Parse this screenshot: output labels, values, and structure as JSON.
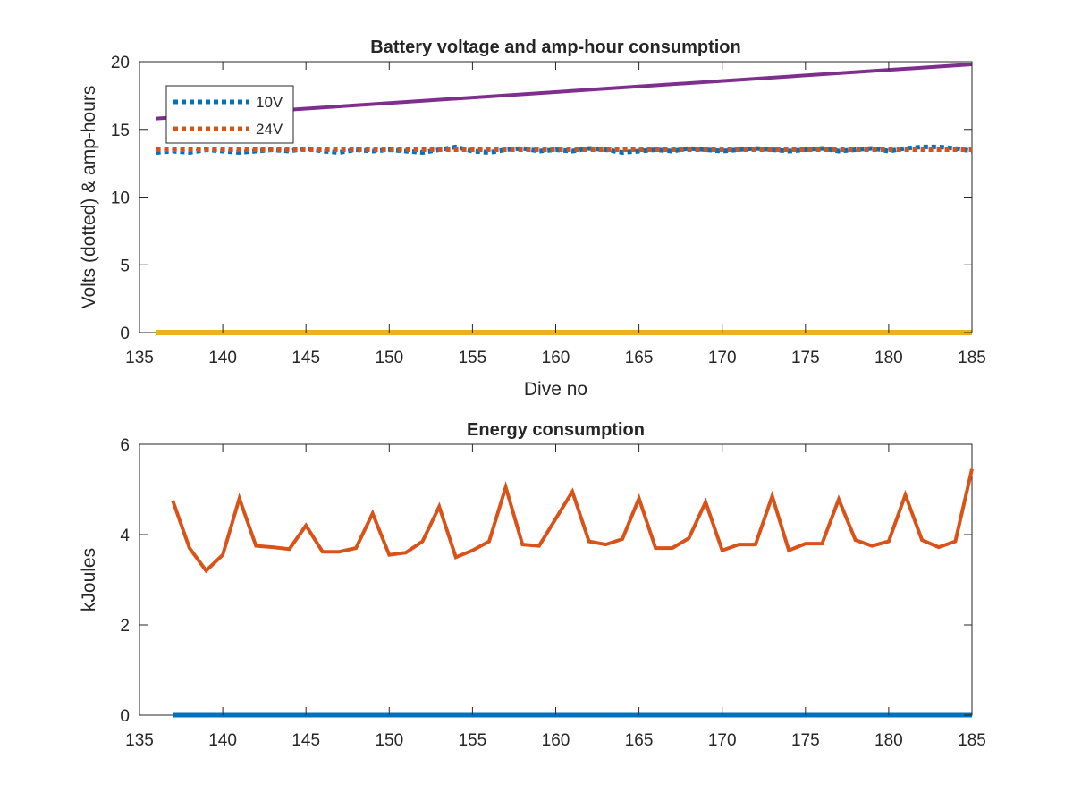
{
  "colors": {
    "v10": "#0072BD",
    "v24": "#D95319",
    "ah_top": "#7E2F8E",
    "ah_zero": "#EDB120",
    "energy_24v": "#D95319",
    "energy_10v": "#0072BD",
    "axis": "#262626"
  },
  "chart_data": [
    {
      "type": "line",
      "title": "Battery voltage and amp-hour consumption",
      "xlabel": "Dive no",
      "ylabel": "Volts (dotted) & amp-hours",
      "xlim": [
        135,
        185
      ],
      "ylim": [
        0,
        20
      ],
      "xticks": [
        135,
        140,
        145,
        150,
        155,
        160,
        165,
        170,
        175,
        180,
        185
      ],
      "yticks": [
        0,
        5,
        10,
        15,
        20
      ],
      "grid": false,
      "legend": {
        "placement": "top-left",
        "entries": [
          "10V",
          "24V"
        ]
      },
      "series": [
        {
          "name": "10V",
          "style": "dotted",
          "x": [
            136,
            137,
            138,
            139,
            140,
            141,
            142,
            143,
            144,
            145,
            146,
            147,
            148,
            149,
            150,
            151,
            152,
            153,
            154,
            155,
            156,
            157,
            158,
            159,
            160,
            161,
            162,
            163,
            164,
            165,
            166,
            167,
            168,
            169,
            170,
            171,
            172,
            173,
            174,
            175,
            176,
            177,
            178,
            179,
            180,
            181,
            182,
            183,
            184,
            185
          ],
          "y": [
            13.3,
            13.4,
            13.3,
            13.5,
            13.4,
            13.3,
            13.4,
            13.5,
            13.4,
            13.6,
            13.4,
            13.3,
            13.5,
            13.4,
            13.5,
            13.4,
            13.3,
            13.5,
            13.7,
            13.4,
            13.3,
            13.5,
            13.6,
            13.4,
            13.5,
            13.4,
            13.6,
            13.5,
            13.3,
            13.4,
            13.5,
            13.4,
            13.6,
            13.5,
            13.4,
            13.5,
            13.6,
            13.5,
            13.4,
            13.5,
            13.6,
            13.4,
            13.5,
            13.6,
            13.4,
            13.6,
            13.7,
            13.7,
            13.6,
            13.4
          ]
        },
        {
          "name": "24V",
          "style": "dotted",
          "x": [
            136,
            185
          ],
          "y": [
            13.5,
            13.5
          ]
        },
        {
          "style": "solid",
          "x": [
            136,
            185
          ],
          "y": [
            15.8,
            19.8
          ]
        },
        {
          "style": "solid",
          "x": [
            136,
            185
          ],
          "y": [
            0,
            0
          ]
        }
      ]
    },
    {
      "type": "line",
      "title": "Energy consumption",
      "xlabel": "",
      "ylabel": "kJoules",
      "xlim": [
        135,
        185
      ],
      "ylim": [
        0,
        6
      ],
      "xticks": [
        135,
        140,
        145,
        150,
        155,
        160,
        165,
        170,
        175,
        180,
        185
      ],
      "yticks": [
        0,
        2,
        4,
        6
      ],
      "grid": false,
      "series": [
        {
          "style": "solid",
          "x": [
            137,
            138,
            139,
            140,
            141,
            142,
            143,
            144,
            145,
            146,
            147,
            148,
            149,
            150,
            151,
            152,
            153,
            154,
            155,
            156,
            157,
            158,
            159,
            160,
            161,
            162,
            163,
            164,
            165,
            166,
            167,
            168,
            169,
            170,
            171,
            172,
            173,
            174,
            175,
            176,
            177,
            178,
            179,
            180,
            181,
            182,
            183,
            184,
            185
          ],
          "y": [
            4.75,
            3.7,
            3.2,
            3.55,
            4.8,
            3.75,
            3.72,
            3.68,
            4.2,
            3.62,
            3.62,
            3.7,
            4.47,
            3.55,
            3.6,
            3.85,
            4.62,
            3.5,
            3.65,
            3.85,
            5.05,
            3.78,
            3.75,
            4.35,
            4.95,
            3.85,
            3.78,
            3.9,
            4.8,
            3.7,
            3.7,
            3.92,
            4.72,
            3.65,
            3.78,
            3.78,
            4.85,
            3.65,
            3.8,
            3.8,
            4.78,
            3.88,
            3.75,
            3.85,
            4.88,
            3.88,
            3.72,
            3.85,
            5.45
          ]
        },
        {
          "style": "solid",
          "x": [
            137,
            185
          ],
          "y": [
            0,
            0
          ]
        }
      ]
    }
  ]
}
